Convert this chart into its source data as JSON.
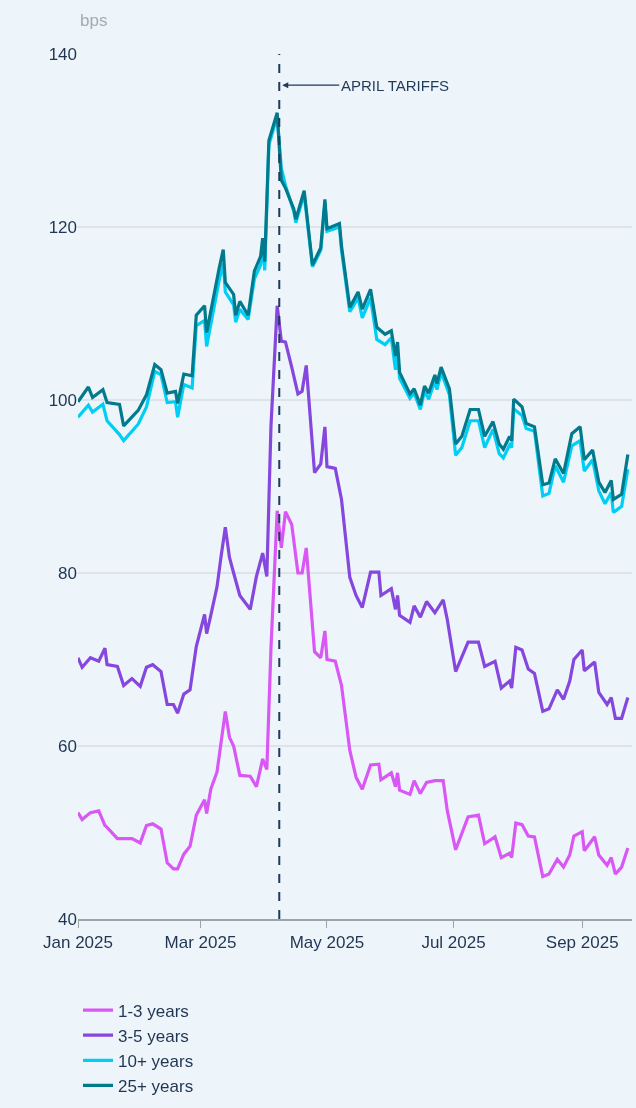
{
  "chart_data": {
    "type": "line",
    "ylabel": "bps",
    "xlim": [
      "2025-01-01",
      "2025-09-25"
    ],
    "xticks": [
      {
        "value": "2025-01-01",
        "label": "Jan 2025"
      },
      {
        "value": "2025-03-01",
        "label": "Mar 2025"
      },
      {
        "value": "2025-05-01",
        "label": "May 2025"
      },
      {
        "value": "2025-07-01",
        "label": "Jul 2025"
      },
      {
        "value": "2025-09-01",
        "label": "Sep 2025"
      }
    ],
    "ylim": [
      40,
      140
    ],
    "yticks": [
      40,
      60,
      80,
      100,
      120,
      140
    ],
    "grid": "y",
    "legend": "bottom",
    "marker": "none",
    "line_style": "solid",
    "ref_lines": [
      {
        "axis": "x",
        "value": "2025-04-08",
        "label": "APRIL TARIFFS",
        "color": "#1f3a5a",
        "line_style": "dashed"
      }
    ],
    "series": [
      {
        "name": "1-3 years",
        "color": "#d957f5",
        "x": [
          "2025-01-01",
          "2025-01-03",
          "2025-01-07",
          "2025-01-11",
          "2025-01-14",
          "2025-01-15",
          "2025-01-20",
          "2025-01-23",
          "2025-01-27",
          "2025-01-31",
          "2025-02-03",
          "2025-02-06",
          "2025-02-10",
          "2025-02-13",
          "2025-02-16",
          "2025-02-18",
          "2025-02-21",
          "2025-02-24",
          "2025-02-27",
          "2025-03-03",
          "2025-03-04",
          "2025-03-06",
          "2025-03-09",
          "2025-03-11",
          "2025-03-13",
          "2025-03-15",
          "2025-03-17",
          "2025-03-20",
          "2025-03-25",
          "2025-03-28",
          "2025-03-31",
          "2025-04-02",
          "2025-04-04",
          "2025-04-07",
          "2025-04-09",
          "2025-04-11",
          "2025-04-14",
          "2025-04-17",
          "2025-04-19",
          "2025-04-21",
          "2025-04-25",
          "2025-04-28",
          "2025-04-30",
          "2025-05-01",
          "2025-05-05",
          "2025-05-08",
          "2025-05-12",
          "2025-05-15",
          "2025-05-18",
          "2025-05-22",
          "2025-05-26",
          "2025-05-27",
          "2025-06-01",
          "2025-06-03",
          "2025-06-04",
          "2025-06-05",
          "2025-06-10",
          "2025-06-12",
          "2025-06-15",
          "2025-06-18",
          "2025-06-22",
          "2025-06-26",
          "2025-06-28",
          "2025-07-02",
          "2025-07-08",
          "2025-07-13",
          "2025-07-16",
          "2025-07-21",
          "2025-07-24",
          "2025-07-28",
          "2025-07-29",
          "2025-07-31",
          "2025-08-03",
          "2025-08-06",
          "2025-08-09",
          "2025-08-13",
          "2025-08-16",
          "2025-08-20",
          "2025-08-23",
          "2025-08-26",
          "2025-08-28",
          "2025-09-01",
          "2025-09-02",
          "2025-09-07",
          "2025-09-09",
          "2025-09-13",
          "2025-09-15",
          "2025-09-17",
          "2025-09-20",
          "2025-09-23"
        ],
        "values": [
          52.3,
          51.5,
          52.3,
          52.5,
          50.8,
          50.6,
          49.3,
          49.3,
          49.3,
          48.8,
          50.8,
          51.0,
          50.4,
          46.5,
          45.8,
          45.8,
          47.5,
          48.4,
          52.0,
          53.8,
          52.2,
          55.0,
          57.0,
          60.5,
          64.0,
          61.0,
          60.0,
          56.6,
          56.5,
          55.3,
          58.5,
          57.3,
          71.3,
          87.2,
          82.9,
          87.1,
          85.6,
          80.0,
          80.0,
          82.9,
          70.9,
          70.2,
          73.3,
          70.0,
          69.8,
          67.0,
          59.5,
          56.4,
          55.0,
          57.8,
          57.9,
          56.1,
          56.9,
          55.3,
          56.9,
          54.9,
          54.4,
          56.0,
          54.5,
          55.8,
          56.0,
          56.0,
          52.5,
          48.0,
          51.8,
          52.0,
          48.7,
          49.5,
          47.1,
          47.6,
          47.1,
          51.1,
          50.9,
          49.6,
          49.5,
          44.9,
          45.2,
          46.9,
          46.0,
          47.4,
          49.6,
          50.1,
          47.9,
          49.5,
          47.4,
          46.2,
          47.1,
          45.2,
          46.0,
          48.2
        ]
      },
      {
        "name": "3-5 years",
        "color": "#8547dd",
        "x": [
          "2025-01-01",
          "2025-01-03",
          "2025-01-07",
          "2025-01-11",
          "2025-01-14",
          "2025-01-15",
          "2025-01-20",
          "2025-01-23",
          "2025-01-27",
          "2025-01-31",
          "2025-02-03",
          "2025-02-06",
          "2025-02-10",
          "2025-02-13",
          "2025-02-16",
          "2025-02-18",
          "2025-02-21",
          "2025-02-24",
          "2025-02-27",
          "2025-03-03",
          "2025-03-04",
          "2025-03-06",
          "2025-03-09",
          "2025-03-11",
          "2025-03-13",
          "2025-03-15",
          "2025-03-17",
          "2025-03-20",
          "2025-03-25",
          "2025-03-28",
          "2025-03-31",
          "2025-04-02",
          "2025-04-04",
          "2025-04-07",
          "2025-04-09",
          "2025-04-11",
          "2025-04-14",
          "2025-04-17",
          "2025-04-19",
          "2025-04-21",
          "2025-04-25",
          "2025-04-28",
          "2025-04-30",
          "2025-05-01",
          "2025-05-05",
          "2025-05-08",
          "2025-05-12",
          "2025-05-15",
          "2025-05-18",
          "2025-05-22",
          "2025-05-26",
          "2025-05-27",
          "2025-06-01",
          "2025-06-03",
          "2025-06-04",
          "2025-06-05",
          "2025-06-10",
          "2025-06-12",
          "2025-06-15",
          "2025-06-18",
          "2025-06-22",
          "2025-06-26",
          "2025-06-28",
          "2025-07-02",
          "2025-07-08",
          "2025-07-13",
          "2025-07-16",
          "2025-07-21",
          "2025-07-24",
          "2025-07-28",
          "2025-07-29",
          "2025-07-31",
          "2025-08-03",
          "2025-08-06",
          "2025-08-09",
          "2025-08-13",
          "2025-08-16",
          "2025-08-20",
          "2025-08-23",
          "2025-08-26",
          "2025-08-28",
          "2025-09-01",
          "2025-09-02",
          "2025-09-07",
          "2025-09-09",
          "2025-09-13",
          "2025-09-15",
          "2025-09-17",
          "2025-09-20",
          "2025-09-23"
        ],
        "values": [
          70.2,
          69.1,
          70.2,
          69.8,
          71.3,
          69.4,
          69.2,
          67.0,
          67.8,
          66.9,
          69.1,
          69.4,
          68.6,
          64.8,
          64.8,
          63.8,
          66.0,
          66.5,
          71.5,
          75.2,
          73.0,
          75.1,
          78.4,
          82.0,
          85.3,
          81.8,
          80.0,
          77.4,
          75.8,
          79.6,
          82.3,
          79.6,
          97.0,
          110.9,
          106.8,
          106.7,
          103.8,
          100.7,
          101.0,
          104.0,
          91.6,
          92.6,
          96.9,
          92.3,
          92.1,
          88.5,
          79.5,
          77.4,
          76.0,
          80.1,
          80.1,
          77.4,
          78.2,
          75.8,
          77.4,
          75.1,
          74.3,
          76.2,
          74.9,
          76.7,
          75.4,
          76.9,
          74.6,
          68.6,
          72.0,
          72.0,
          69.2,
          69.8,
          66.7,
          67.5,
          66.7,
          71.4,
          71.1,
          68.9,
          68.4,
          64.0,
          64.3,
          66.5,
          65.4,
          67.5,
          70.0,
          71.1,
          68.7,
          69.7,
          66.2,
          64.8,
          65.6,
          63.2,
          63.2,
          65.6
        ]
      },
      {
        "name": "10+ years",
        "color": "#00cff5",
        "x": [
          "2025-01-01",
          "2025-01-06",
          "2025-01-08",
          "2025-01-13",
          "2025-01-15",
          "2025-01-21",
          "2025-01-23",
          "2025-01-30",
          "2025-02-03",
          "2025-02-07",
          "2025-02-10",
          "2025-02-13",
          "2025-02-17",
          "2025-02-18",
          "2025-02-21",
          "2025-02-25",
          "2025-02-27",
          "2025-03-03",
          "2025-03-04",
          "2025-03-10",
          "2025-03-12",
          "2025-03-13",
          "2025-03-17",
          "2025-03-18",
          "2025-03-20",
          "2025-03-24",
          "2025-03-27",
          "2025-03-30",
          "2025-03-31",
          "2025-04-01",
          "2025-04-03",
          "2025-04-07",
          "2025-04-09",
          "2025-04-11",
          "2025-04-15",
          "2025-04-16",
          "2025-04-20",
          "2025-04-24",
          "2025-04-28",
          "2025-04-30",
          "2025-05-01",
          "2025-05-07",
          "2025-05-08",
          "2025-05-12",
          "2025-05-16",
          "2025-05-18",
          "2025-05-22",
          "2025-05-25",
          "2025-05-29",
          "2025-06-01",
          "2025-06-03",
          "2025-06-04",
          "2025-06-05",
          "2025-06-10",
          "2025-06-12",
          "2025-06-15",
          "2025-06-17",
          "2025-06-19",
          "2025-06-22",
          "2025-06-23",
          "2025-06-25",
          "2025-06-29",
          "2025-07-02",
          "2025-07-05",
          "2025-07-09",
          "2025-07-13",
          "2025-07-16",
          "2025-07-20",
          "2025-07-23",
          "2025-07-25",
          "2025-07-28",
          "2025-07-29",
          "2025-07-30",
          "2025-08-03",
          "2025-08-05",
          "2025-08-09",
          "2025-08-13",
          "2025-08-16",
          "2025-08-19",
          "2025-08-23",
          "2025-08-27",
          "2025-08-31",
          "2025-09-02",
          "2025-09-06",
          "2025-09-09",
          "2025-09-12",
          "2025-09-15",
          "2025-09-16",
          "2025-09-20",
          "2025-09-23"
        ],
        "values": [
          98.0,
          99.4,
          98.6,
          99.5,
          97.6,
          96.0,
          95.3,
          97.2,
          99.2,
          103.3,
          102.9,
          99.7,
          99.8,
          98.0,
          101.8,
          101.4,
          108.6,
          109.2,
          106.2,
          113.8,
          115.8,
          112.5,
          111.0,
          109.0,
          110.5,
          109.3,
          114.0,
          115.6,
          118.0,
          115.0,
          129.5,
          132.8,
          126.8,
          124.8,
          121.8,
          120.5,
          123.8,
          115.4,
          117.3,
          122.8,
          119.5,
          120.0,
          117.3,
          110.2,
          111.8,
          109.5,
          111.8,
          107.0,
          106.4,
          107.2,
          103.5,
          105.5,
          102.5,
          100.2,
          100.8,
          98.9,
          101.0,
          100.1,
          102.2,
          101.2,
          103.2,
          100.6,
          93.6,
          94.5,
          97.6,
          97.6,
          94.5,
          96.6,
          93.8,
          93.3,
          94.8,
          94.5,
          99.0,
          98.2,
          96.7,
          96.4,
          88.9,
          89.2,
          92.4,
          90.5,
          94.7,
          95.3,
          91.8,
          93.1,
          89.5,
          88.0,
          89.3,
          87.0,
          87.7,
          92.0
        ]
      },
      {
        "name": "25+ years",
        "color": "#007a8c",
        "x": [
          "2025-01-01",
          "2025-01-06",
          "2025-01-08",
          "2025-01-13",
          "2025-01-15",
          "2025-01-21",
          "2025-01-23",
          "2025-01-30",
          "2025-02-03",
          "2025-02-07",
          "2025-02-10",
          "2025-02-13",
          "2025-02-17",
          "2025-02-18",
          "2025-02-21",
          "2025-02-25",
          "2025-02-27",
          "2025-03-03",
          "2025-03-04",
          "2025-03-10",
          "2025-03-12",
          "2025-03-13",
          "2025-03-17",
          "2025-03-18",
          "2025-03-20",
          "2025-03-24",
          "2025-03-27",
          "2025-03-30",
          "2025-03-31",
          "2025-04-01",
          "2025-04-03",
          "2025-04-07",
          "2025-04-09",
          "2025-04-11",
          "2025-04-15",
          "2025-04-16",
          "2025-04-20",
          "2025-04-24",
          "2025-04-28",
          "2025-04-30",
          "2025-05-01",
          "2025-05-07",
          "2025-05-08",
          "2025-05-12",
          "2025-05-16",
          "2025-05-18",
          "2025-05-22",
          "2025-05-25",
          "2025-05-29",
          "2025-06-01",
          "2025-06-03",
          "2025-06-04",
          "2025-06-05",
          "2025-06-10",
          "2025-06-12",
          "2025-06-15",
          "2025-06-17",
          "2025-06-19",
          "2025-06-22",
          "2025-06-23",
          "2025-06-25",
          "2025-06-29",
          "2025-07-02",
          "2025-07-05",
          "2025-07-09",
          "2025-07-13",
          "2025-07-16",
          "2025-07-20",
          "2025-07-23",
          "2025-07-25",
          "2025-07-28",
          "2025-07-29",
          "2025-07-30",
          "2025-08-03",
          "2025-08-05",
          "2025-08-09",
          "2025-08-13",
          "2025-08-16",
          "2025-08-19",
          "2025-08-23",
          "2025-08-27",
          "2025-08-31",
          "2025-09-02",
          "2025-09-06",
          "2025-09-09",
          "2025-09-12",
          "2025-09-15",
          "2025-09-16",
          "2025-09-20",
          "2025-09-23"
        ],
        "values": [
          99.8,
          101.5,
          100.3,
          101.2,
          99.7,
          99.5,
          97.0,
          98.8,
          100.6,
          104.1,
          103.5,
          100.8,
          101.0,
          99.6,
          103.0,
          102.8,
          109.8,
          110.9,
          107.8,
          115.2,
          117.4,
          113.6,
          112.2,
          109.8,
          111.4,
          109.8,
          114.9,
          116.6,
          118.7,
          116.0,
          130.0,
          133.2,
          125.4,
          124.5,
          122.1,
          120.9,
          124.2,
          115.6,
          117.6,
          123.2,
          119.8,
          120.4,
          117.8,
          110.7,
          112.5,
          110.5,
          112.8,
          108.4,
          107.6,
          108.0,
          105.1,
          106.7,
          103.2,
          100.7,
          101.3,
          99.4,
          101.6,
          100.8,
          102.9,
          101.9,
          103.8,
          101.3,
          94.9,
          95.8,
          98.9,
          98.9,
          95.8,
          97.5,
          94.9,
          94.3,
          95.8,
          95.3,
          100.1,
          99.2,
          97.3,
          96.9,
          90.2,
          90.4,
          93.2,
          91.5,
          96.1,
          96.9,
          93.1,
          94.2,
          90.5,
          89.3,
          90.7,
          88.5,
          89.1,
          93.7
        ]
      }
    ]
  }
}
